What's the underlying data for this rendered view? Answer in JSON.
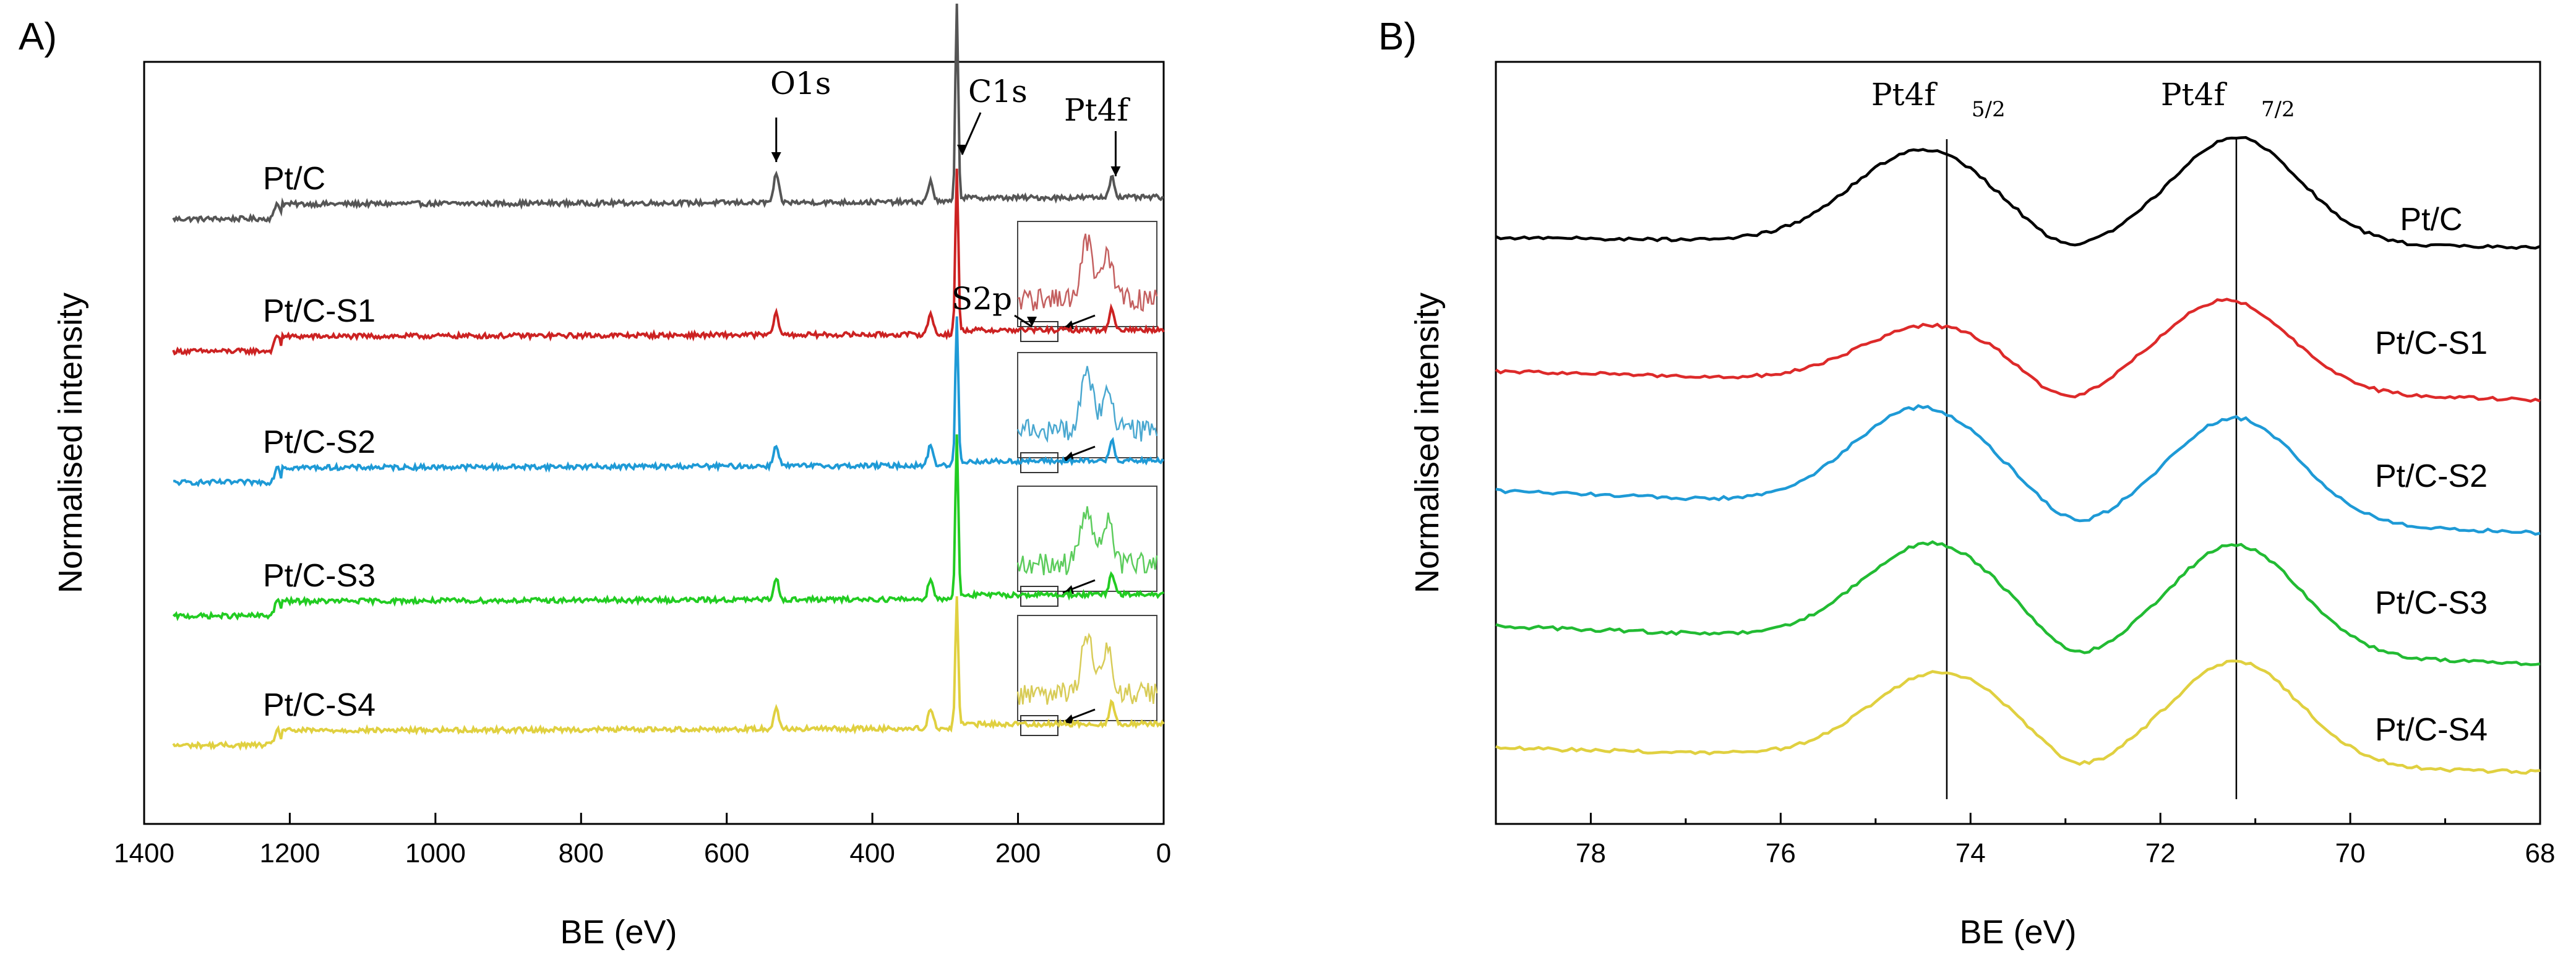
{
  "panels": [
    {
      "label": "A)",
      "chart_data": {
        "type": "line",
        "title": "",
        "xlabel": "BE (eV)",
        "ylabel": "Normalised intensity",
        "xlim": [
          1400,
          0
        ],
        "x_reversed": true,
        "xticks": [
          1400,
          1200,
          1000,
          800,
          600,
          400,
          200,
          0
        ],
        "grid": false,
        "series": [
          {
            "name": "Pt/C",
            "color": "#555555",
            "offset": 4,
            "noise": 0.6,
            "peaks": [
              [
                1217,
                2
              ],
              [
                532,
                3.4
              ],
              [
                320,
                2.6
              ],
              [
                284,
                24
              ],
              [
                71,
                2.6
              ]
            ],
            "inset": false
          },
          {
            "name": "Pt/C-S1",
            "color": "#cc2222",
            "offset": 3,
            "noise": 0.6,
            "peaks": [
              [
                1217,
                2
              ],
              [
                532,
                2.6
              ],
              [
                320,
                2.6
              ],
              [
                284,
                20
              ],
              [
                71,
                2.6
              ]
            ],
            "inset": true,
            "inset_color": "#c46060"
          },
          {
            "name": "Pt/C-S2",
            "color": "#1e9ad6",
            "offset": 2,
            "noise": 0.6,
            "peaks": [
              [
                1217,
                2
              ],
              [
                532,
                2.6
              ],
              [
                320,
                2.6
              ],
              [
                284,
                18
              ],
              [
                71,
                2.6
              ]
            ],
            "inset": true,
            "inset_color": "#4aa8d0"
          },
          {
            "name": "Pt/C-S3",
            "color": "#22cc22",
            "offset": 1,
            "noise": 0.6,
            "peaks": [
              [
                1217,
                2
              ],
              [
                532,
                2.6
              ],
              [
                320,
                2.6
              ],
              [
                284,
                20
              ],
              [
                71,
                2.6
              ]
            ],
            "inset": true,
            "inset_color": "#5ccc5c"
          },
          {
            "name": "Pt/C-S4",
            "color": "#e0d040",
            "offset": 0,
            "noise": 0.6,
            "peaks": [
              [
                1217,
                2
              ],
              [
                532,
                2.6
              ],
              [
                320,
                2.6
              ],
              [
                284,
                16
              ],
              [
                71,
                2.6
              ]
            ],
            "inset": true,
            "inset_color": "#d8cc58"
          }
        ],
        "annotations": [
          {
            "text": "O1s",
            "x": 532
          },
          {
            "text": "C1s",
            "x": 284
          },
          {
            "text": "Pt4f",
            "x": 71
          },
          {
            "text": "S2p",
            "x": 165
          }
        ]
      }
    },
    {
      "label": "B)",
      "chart_data": {
        "type": "line",
        "title": "",
        "xlabel": "BE (eV)",
        "ylabel": "Normalised intensity",
        "xlim": [
          79,
          68
        ],
        "x_reversed": true,
        "xticks": [
          78,
          76,
          74,
          72,
          70,
          68
        ],
        "grid": false,
        "series": [
          {
            "name": "Pt/C",
            "color": "#000000",
            "offset": 4,
            "base_left": 0.1,
            "base_right": 0.0,
            "p1": [
              74.5,
              0.96
            ],
            "p2": [
              71.2,
              1.12
            ],
            "dip": [
              73.0,
              0.38
            ]
          },
          {
            "name": "Pt/C-S1",
            "color": "#dd2a2a",
            "offset": 3,
            "base_left": 0.0,
            "base_right": -0.3,
            "p1": [
              74.4,
              0.6
            ],
            "p2": [
              71.3,
              0.95
            ],
            "dip": [
              73.0,
              0.05
            ]
          },
          {
            "name": "Pt/C-S2",
            "color": "#1e9ad6",
            "offset": 2,
            "base_left": 0.14,
            "base_right": -0.3,
            "p1": [
              74.5,
              1.05
            ],
            "p2": [
              71.2,
              1.07
            ],
            "dip": [
              72.9,
              0.2
            ]
          },
          {
            "name": "Pt/C-S3",
            "color": "#22bb33",
            "offset": 1,
            "base_left": 0.05,
            "base_right": -0.35,
            "p1": [
              74.4,
              1.03
            ],
            "p2": [
              71.2,
              1.13
            ],
            "dip": [
              72.9,
              0.15
            ]
          },
          {
            "name": "Pt/C-S4",
            "color": "#e0d040",
            "offset": 0,
            "base_left": 0.1,
            "base_right": -0.15,
            "p1": [
              74.3,
              0.9
            ],
            "p2": [
              71.2,
              1.08
            ],
            "dip": [
              72.9,
              0.2
            ]
          }
        ],
        "reference_lines": [
          {
            "x": 74.25,
            "label_main": "Pt4f",
            "label_sub": "5/2"
          },
          {
            "x": 71.2,
            "label_main": "Pt4f",
            "label_sub": "7/2"
          }
        ]
      }
    }
  ]
}
